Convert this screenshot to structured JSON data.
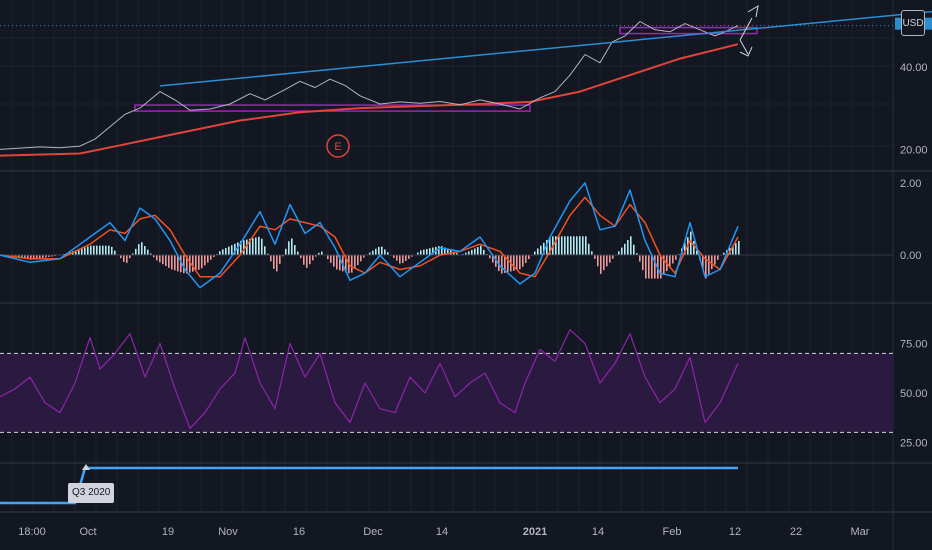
{
  "header": {
    "currency": "USD"
  },
  "colors": {
    "background": "#131722",
    "grid": "#1e222d",
    "price": "#b2b5be",
    "ma": "#e0443a",
    "trend": "#2a8ed1",
    "support": "#9c27b0",
    "macd": "#2196f3",
    "signal": "#f4511e",
    "hist_pos": "#b2ebf2",
    "hist_neg": "#ef9a9a",
    "rsi": "#8e24aa",
    "rsi_band": "#2a1a40",
    "event": "#e0443a",
    "highlight": "#42a5f5"
  },
  "annotations": {
    "event_marker": "E",
    "quarter_label": "Q3 2020"
  },
  "chart_data": [
    {
      "type": "line",
      "panel": "price",
      "currency": "USD",
      "ylim": [
        15,
        55
      ],
      "yticks": [
        "20.00",
        "40.00"
      ],
      "series": [
        {
          "values_key": "price",
          "points": [
            [
              0,
              20.0
            ],
            [
              20,
              20.3
            ],
            [
              40,
              20.6
            ],
            [
              60,
              20.4
            ],
            [
              80,
              20.8
            ],
            [
              95,
              22.5
            ],
            [
              110,
              25.5
            ],
            [
              125,
              28.5
            ],
            [
              140,
              30.0
            ],
            [
              160,
              34.0
            ],
            [
              175,
              32.0
            ],
            [
              190,
              29.5
            ],
            [
              210,
              29.8
            ],
            [
              230,
              31.0
            ],
            [
              250,
              33.5
            ],
            [
              265,
              32.0
            ],
            [
              285,
              34.5
            ],
            [
              300,
              36.5
            ],
            [
              315,
              35.0
            ],
            [
              330,
              37.0
            ],
            [
              345,
              35.5
            ],
            [
              360,
              33.0
            ],
            [
              380,
              31.0
            ],
            [
              400,
              31.5
            ],
            [
              420,
              31.2
            ],
            [
              440,
              31.6
            ],
            [
              460,
              30.8
            ],
            [
              480,
              32.0
            ],
            [
              500,
              31.0
            ],
            [
              520,
              29.8
            ],
            [
              540,
              32.5
            ],
            [
              555,
              34.0
            ],
            [
              570,
              38.0
            ],
            [
              585,
              43.0
            ],
            [
              600,
              41.0
            ],
            [
              612,
              46.0
            ],
            [
              625,
              47.5
            ],
            [
              640,
              51.0
            ],
            [
              655,
              49.0
            ],
            [
              670,
              48.5
            ],
            [
              685,
              50.5
            ],
            [
              700,
              49.0
            ],
            [
              715,
              47.5
            ],
            [
              725,
              48.5
            ],
            [
              738,
              50.0
            ]
          ]
        },
        {
          "values_key": "moving_average",
          "points": [
            [
              0,
              18.5
            ],
            [
              80,
              19.0
            ],
            [
              120,
              21.0
            ],
            [
              180,
              24.0
            ],
            [
              240,
              27.0
            ],
            [
              300,
              29.0
            ],
            [
              360,
              30.0
            ],
            [
              420,
              30.5
            ],
            [
              480,
              31.0
            ],
            [
              530,
              31.5
            ],
            [
              580,
              34.0
            ],
            [
              630,
              38.0
            ],
            [
              680,
              42.0
            ],
            [
              738,
              45.5
            ]
          ]
        }
      ],
      "trendlines": [
        {
          "name": "resistance",
          "from": [
            160,
            35.4
          ],
          "to": [
            932,
            53.4
          ]
        },
        {
          "name": "support",
          "from": [
            135,
            30.0
          ],
          "to": [
            530,
            30.0
          ]
        }
      ]
    },
    {
      "type": "line",
      "panel": "macd",
      "ylim": [
        -1.3,
        2.3
      ],
      "yticks": [
        "0.00",
        "2.00"
      ],
      "series": [
        {
          "values_key": "macd_line",
          "points": [
            [
              0,
              0
            ],
            [
              30,
              -0.2
            ],
            [
              60,
              -0.1
            ],
            [
              90,
              0.5
            ],
            [
              110,
              0.9
            ],
            [
              125,
              0.4
            ],
            [
              140,
              1.3
            ],
            [
              155,
              1.0
            ],
            [
              170,
              0.4
            ],
            [
              185,
              -0.4
            ],
            [
              200,
              -0.9
            ],
            [
              220,
              -0.5
            ],
            [
              240,
              0.3
            ],
            [
              260,
              1.2
            ],
            [
              275,
              0.3
            ],
            [
              290,
              1.4
            ],
            [
              305,
              0.6
            ],
            [
              320,
              0.9
            ],
            [
              335,
              0.2
            ],
            [
              350,
              -0.7
            ],
            [
              365,
              -0.5
            ],
            [
              380,
              0.0
            ],
            [
              400,
              -0.6
            ],
            [
              420,
              -0.2
            ],
            [
              440,
              0.2
            ],
            [
              460,
              0.1
            ],
            [
              480,
              0.5
            ],
            [
              500,
              -0.3
            ],
            [
              520,
              -0.8
            ],
            [
              535,
              -0.5
            ],
            [
              550,
              0.5
            ],
            [
              570,
              1.5
            ],
            [
              585,
              2.0
            ],
            [
              600,
              0.7
            ],
            [
              615,
              0.8
            ],
            [
              630,
              1.8
            ],
            [
              645,
              0.4
            ],
            [
              660,
              -0.5
            ],
            [
              675,
              -0.6
            ],
            [
              690,
              0.9
            ],
            [
              705,
              -0.6
            ],
            [
              720,
              -0.4
            ],
            [
              738,
              0.8
            ]
          ]
        },
        {
          "values_key": "signal_line",
          "points": [
            [
              0,
              0
            ],
            [
              30,
              -0.1
            ],
            [
              60,
              -0.1
            ],
            [
              90,
              0.3
            ],
            [
              110,
              0.7
            ],
            [
              125,
              0.6
            ],
            [
              140,
              1.0
            ],
            [
              155,
              1.1
            ],
            [
              170,
              0.7
            ],
            [
              185,
              0.0
            ],
            [
              200,
              -0.6
            ],
            [
              220,
              -0.6
            ],
            [
              240,
              0.0
            ],
            [
              260,
              0.8
            ],
            [
              275,
              0.7
            ],
            [
              290,
              1.0
            ],
            [
              305,
              0.9
            ],
            [
              320,
              0.8
            ],
            [
              335,
              0.5
            ],
            [
              350,
              -0.3
            ],
            [
              365,
              -0.5
            ],
            [
              380,
              -0.2
            ],
            [
              400,
              -0.4
            ],
            [
              420,
              -0.3
            ],
            [
              440,
              0.0
            ],
            [
              460,
              0.1
            ],
            [
              480,
              0.3
            ],
            [
              500,
              0.1
            ],
            [
              520,
              -0.5
            ],
            [
              535,
              -0.6
            ],
            [
              550,
              0.1
            ],
            [
              570,
              1.1
            ],
            [
              585,
              1.6
            ],
            [
              600,
              1.1
            ],
            [
              615,
              0.8
            ],
            [
              630,
              1.4
            ],
            [
              645,
              0.9
            ],
            [
              660,
              0.0
            ],
            [
              675,
              -0.5
            ],
            [
              690,
              0.4
            ],
            [
              705,
              -0.1
            ],
            [
              720,
              -0.4
            ],
            [
              738,
              0.5
            ]
          ]
        }
      ]
    },
    {
      "type": "line",
      "panel": "rsi",
      "ylim": [
        15,
        95
      ],
      "yticks": [
        "25.00",
        "50.00",
        "75.00"
      ],
      "bands": [
        30,
        70
      ],
      "series": [
        {
          "values_key": "rsi",
          "points": [
            [
              0,
              48
            ],
            [
              15,
              52
            ],
            [
              30,
              58
            ],
            [
              45,
              45
            ],
            [
              60,
              40
            ],
            [
              75,
              55
            ],
            [
              90,
              78
            ],
            [
              100,
              62
            ],
            [
              115,
              70
            ],
            [
              130,
              80
            ],
            [
              145,
              58
            ],
            [
              160,
              75
            ],
            [
              175,
              52
            ],
            [
              190,
              32
            ],
            [
              205,
              40
            ],
            [
              220,
              52
            ],
            [
              235,
              60
            ],
            [
              245,
              78
            ],
            [
              260,
              55
            ],
            [
              275,
              42
            ],
            [
              290,
              75
            ],
            [
              305,
              58
            ],
            [
              320,
              70
            ],
            [
              335,
              45
            ],
            [
              350,
              35
            ],
            [
              365,
              55
            ],
            [
              380,
              42
            ],
            [
              395,
              40
            ],
            [
              410,
              58
            ],
            [
              425,
              50
            ],
            [
              440,
              65
            ],
            [
              455,
              48
            ],
            [
              470,
              55
            ],
            [
              485,
              60
            ],
            [
              500,
              45
            ],
            [
              515,
              40
            ],
            [
              525,
              55
            ],
            [
              540,
              72
            ],
            [
              555,
              66
            ],
            [
              570,
              82
            ],
            [
              585,
              75
            ],
            [
              600,
              55
            ],
            [
              615,
              65
            ],
            [
              630,
              80
            ],
            [
              645,
              58
            ],
            [
              660,
              45
            ],
            [
              675,
              52
            ],
            [
              690,
              68
            ],
            [
              705,
              35
            ],
            [
              720,
              45
            ],
            [
              738,
              65
            ]
          ]
        }
      ]
    },
    {
      "type": "line",
      "panel": "earnings",
      "series": [
        {
          "values_key": "earnings_level",
          "points": [
            [
              0,
              0
            ],
            [
              75,
              0
            ],
            [
              85,
              1
            ],
            [
              738,
              1
            ]
          ]
        }
      ]
    }
  ],
  "xaxis": {
    "labels": [
      "18:00",
      "Oct",
      "19",
      "Nov",
      "16",
      "Dec",
      "14",
      "2021",
      "14",
      "Feb",
      "12",
      "22",
      "Mar"
    ]
  }
}
